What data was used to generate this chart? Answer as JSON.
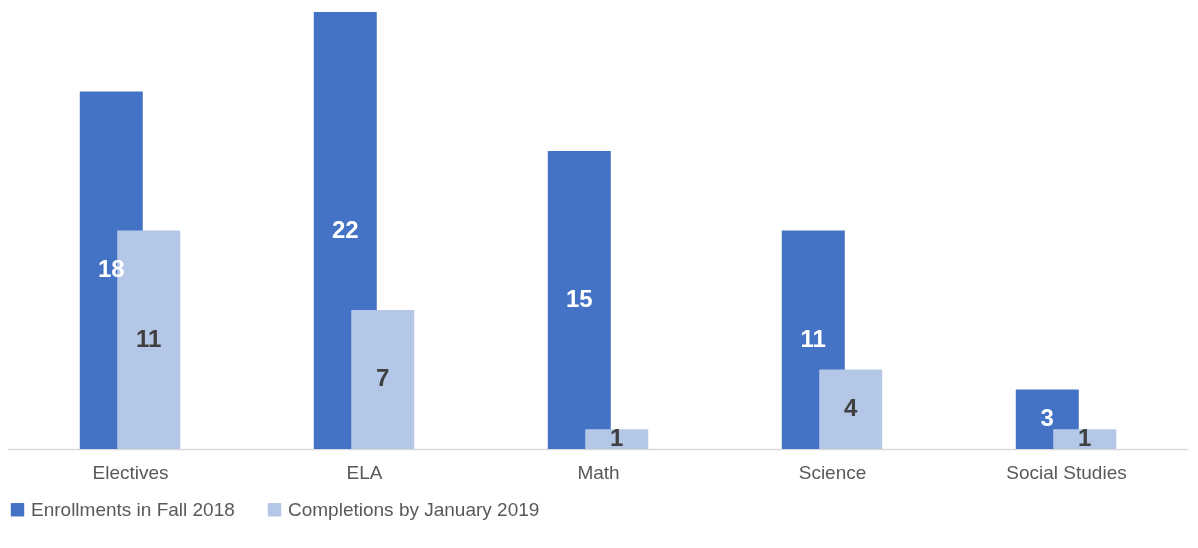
{
  "chart_data": {
    "type": "bar",
    "categories": [
      "Electives",
      "ELA",
      "Math",
      "Science",
      "Social Studies"
    ],
    "series": [
      {
        "name": "Enrollments in Fall 2018",
        "color": "#4472c4",
        "values": [
          18,
          22,
          15,
          11,
          3
        ]
      },
      {
        "name": "Completions by January 2019",
        "color": "#b4c7e7",
        "values": [
          11,
          7,
          1,
          4,
          1
        ]
      }
    ],
    "data_labels": true,
    "legend": "bottom",
    "grid": false
  }
}
